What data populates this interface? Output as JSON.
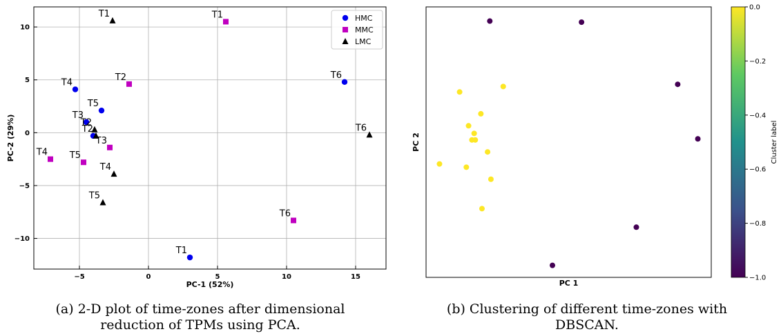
{
  "captions": {
    "a": "(a) 2-D plot of time-zones after dimensional reduction of TPMs using PCA.",
    "b": "(b) Clustering of different time-zones with DBSCAN."
  },
  "chart_data": [
    {
      "type": "scatter",
      "title": "",
      "xlabel": "PC-1 (52%)",
      "ylabel": "PC-2 (29%)",
      "xlim": [
        -8.3,
        17.2
      ],
      "ylim": [
        -12.9,
        11.9
      ],
      "xticks": [
        -5,
        0,
        5,
        10,
        15
      ],
      "yticks": [
        -10,
        -5,
        0,
        5,
        10
      ],
      "grid": true,
      "legend": "top-right",
      "series": [
        {
          "name": "HMC",
          "color": "#0000ee",
          "marker": "circle",
          "points": [
            {
              "x": -5.3,
              "y": 4.1,
              "label": "T4"
            },
            {
              "x": -3.4,
              "y": 2.1,
              "label": "T5"
            },
            {
              "x": -4.5,
              "y": 1.0,
              "label": "T3"
            },
            {
              "x": -4.0,
              "y": -0.3,
              "label": ""
            },
            {
              "x": 14.2,
              "y": 4.8,
              "label": "T6"
            },
            {
              "x": 3.0,
              "y": -11.8,
              "label": "T1"
            }
          ]
        },
        {
          "name": "MMC",
          "color": "#c000c0",
          "marker": "square",
          "points": [
            {
              "x": 5.6,
              "y": 10.5,
              "label": "T1"
            },
            {
              "x": -1.4,
              "y": 4.6,
              "label": "T2"
            },
            {
              "x": -2.8,
              "y": -1.4,
              "label": "T3"
            },
            {
              "x": -7.1,
              "y": -2.5,
              "label": "T4"
            },
            {
              "x": -4.7,
              "y": -2.8,
              "label": "T5"
            },
            {
              "x": 10.5,
              "y": -8.3,
              "label": "T6"
            }
          ]
        },
        {
          "name": "LMC",
          "color": "#000000",
          "marker": "triangle",
          "points": [
            {
              "x": -2.6,
              "y": 10.6,
              "label": "T1"
            },
            {
              "x": -3.9,
              "y": 0.3,
              "label": "T2"
            },
            {
              "x": -3.8,
              "y": -0.3,
              "label": "T2"
            },
            {
              "x": -2.5,
              "y": -3.9,
              "label": "T4"
            },
            {
              "x": -3.3,
              "y": -6.6,
              "label": "T5"
            },
            {
              "x": 16.0,
              "y": -0.2,
              "label": "T6"
            }
          ]
        }
      ]
    },
    {
      "type": "scatter",
      "title": "",
      "xlabel": "PC 1",
      "ylabel": "PC 2",
      "xlim": [
        -8.3,
        17.2
      ],
      "ylim": [
        -12.9,
        11.9
      ],
      "grid": false,
      "colorbar": {
        "label": "Cluster label",
        "min": -1.0,
        "max": 0.0,
        "ticks": [
          "0.0",
          "−0.2",
          "−0.4",
          "−0.6",
          "−0.8",
          "−1.0"
        ],
        "colors": [
          "#440154",
          "#3b528b",
          "#21918c",
          "#5ec962",
          "#fde725"
        ]
      },
      "points": [
        {
          "x": -2.6,
          "y": 10.6,
          "cluster": -1
        },
        {
          "x": 5.6,
          "y": 10.5,
          "cluster": -1
        },
        {
          "x": 14.2,
          "y": 4.8,
          "cluster": -1
        },
        {
          "x": 16.0,
          "y": -0.2,
          "cluster": -1
        },
        {
          "x": 10.5,
          "y": -8.3,
          "cluster": -1
        },
        {
          "x": 3.0,
          "y": -11.8,
          "cluster": -1
        },
        {
          "x": -5.3,
          "y": 4.1,
          "cluster": 0
        },
        {
          "x": -1.4,
          "y": 4.6,
          "cluster": 0
        },
        {
          "x": -3.4,
          "y": 2.1,
          "cluster": 0
        },
        {
          "x": -4.5,
          "y": 1.0,
          "cluster": 0
        },
        {
          "x": -4.0,
          "y": 0.3,
          "cluster": 0
        },
        {
          "x": -4.2,
          "y": -0.3,
          "cluster": 0
        },
        {
          "x": -3.9,
          "y": -0.3,
          "cluster": 0
        },
        {
          "x": -2.8,
          "y": -1.4,
          "cluster": 0
        },
        {
          "x": -7.1,
          "y": -2.5,
          "cluster": 0
        },
        {
          "x": -4.7,
          "y": -2.8,
          "cluster": 0
        },
        {
          "x": -2.5,
          "y": -3.9,
          "cluster": 0
        },
        {
          "x": -3.3,
          "y": -6.6,
          "cluster": 0
        }
      ]
    }
  ]
}
